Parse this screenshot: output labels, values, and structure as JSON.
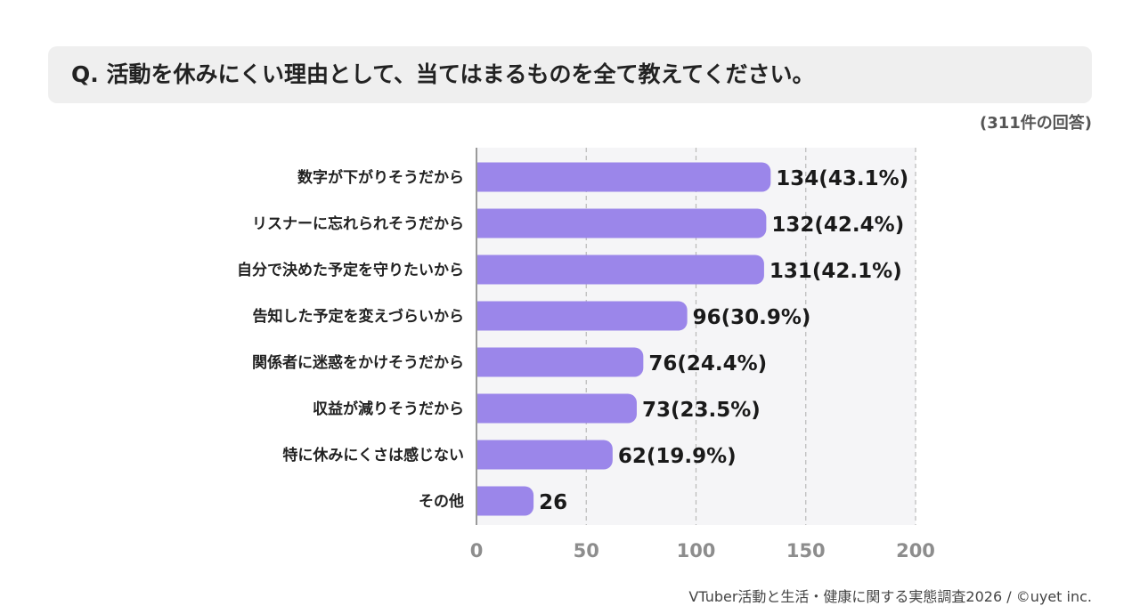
{
  "title": "Q. 活動を休みにくい理由として、当てはまるものを全て教えてください。",
  "response_count": "(311件の回答)",
  "source": "VTuber活動と生活・健康に関する実態調査2026 / ©uyet inc.",
  "chart_data": {
    "type": "bar",
    "orientation": "horizontal",
    "categories": [
      "数字が下がりそうだから",
      "リスナーに忘れられそうだから",
      "自分で決めた予定を守りたいから",
      "告知した予定を変えづらいから",
      "関係者に迷惑をかけそうだから",
      "収益が減りそうだから",
      "特に休みにくさは感じない",
      "その他"
    ],
    "values": [
      134,
      132,
      131,
      96,
      76,
      73,
      62,
      26
    ],
    "data_labels": [
      "134(43.1%)",
      "132(42.4%)",
      "131(42.1%)",
      "96(30.9%)",
      "76(24.4%)",
      "73(23.5%)",
      "62(19.9%)",
      "26"
    ],
    "xlim": [
      0,
      200
    ],
    "xticks": [
      0,
      50,
      100,
      150,
      200
    ],
    "grid": true,
    "bar_color": "#9b86ea",
    "plot_bg": "#f5f5f7"
  }
}
